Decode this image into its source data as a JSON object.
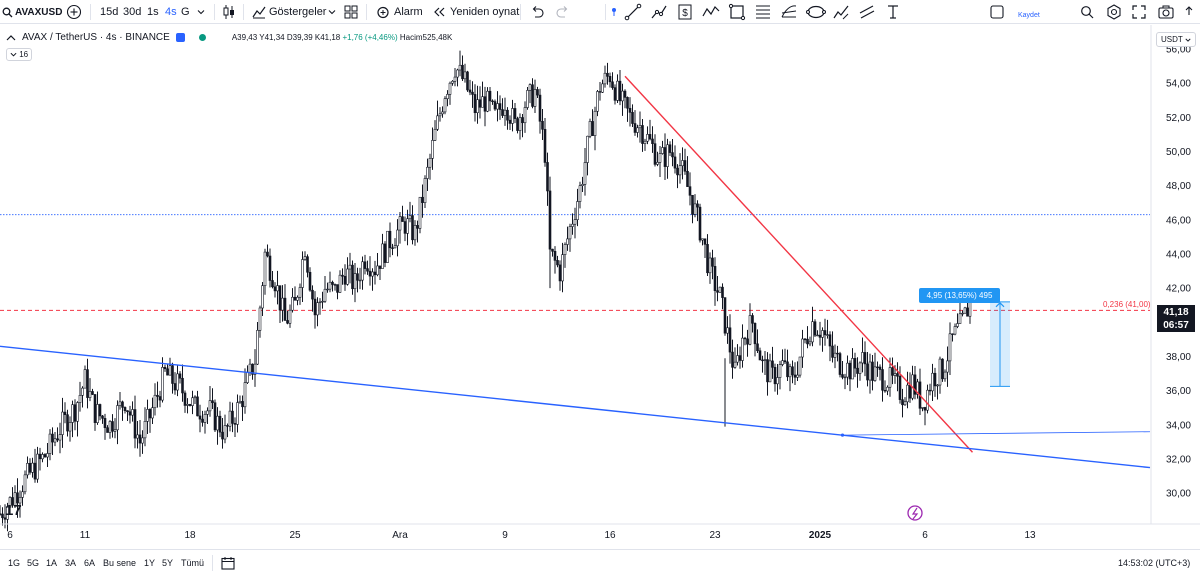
{
  "toolbar": {
    "symbol": "AVAXUSD",
    "intervals": [
      "15d",
      "30d",
      "1s",
      "4s",
      "G"
    ],
    "indicators_label": "Göstergeler",
    "alarm_label": "Alarm",
    "replay_label": "Yeniden oynat",
    "save_label": "Kaydet"
  },
  "legend": {
    "title": "AVAX / TetherUS · 4s · BINANCE",
    "ohlc": "A39,43 Y41,34 D39,39 K41,18",
    "change": "+1,76 (+4,46%)",
    "volume": "Hacim525,48K",
    "badge": "16"
  },
  "price_axis": {
    "currency": "USDT",
    "last_price": "41,18",
    "countdown": "06:57"
  },
  "annotations": {
    "fib_label": "0,236 (41,00)",
    "measure_label": "4,95 (13,65%) 495"
  },
  "bottom": {
    "ranges": [
      "1G",
      "5G",
      "1A",
      "3A",
      "6A",
      "Bu sene",
      "1Y",
      "5Y",
      "Tümü"
    ],
    "clock": "14:53:02 (UTC+3)"
  },
  "colors": {
    "accent": "#2962ff",
    "trend_red": "#f23645",
    "trend_blue": "#2962ff",
    "measure_blue": "#2196f3",
    "candles": "#131722"
  },
  "chart_data": {
    "type": "candlestick",
    "y_ticks": [
      "56,00",
      "54,00",
      "52,00",
      "50,00",
      "48,00",
      "46,00",
      "44,00",
      "42,00",
      "40,00",
      "38,00",
      "36,00",
      "34,00",
      "32,00",
      "30,00"
    ],
    "y_tick_values": [
      56,
      54,
      52,
      50,
      48,
      46,
      44,
      42,
      40,
      38,
      36,
      34,
      32,
      30
    ],
    "ylim": [
      28.2,
      57.4
    ],
    "x_ticks": [
      "6",
      "11",
      "18",
      "25",
      "Ara",
      "9",
      "16",
      "23",
      "2025",
      "6",
      "13"
    ],
    "x_tick_bars": [
      4,
      34,
      76,
      118,
      160,
      202,
      244,
      286,
      328,
      370,
      412
    ],
    "bar_count": 460,
    "close_path": [
      [
        0,
        28.8
      ],
      [
        4,
        29.5
      ],
      [
        10,
        30.8
      ],
      [
        18,
        32.2
      ],
      [
        24,
        33.8
      ],
      [
        30,
        35.0
      ],
      [
        34,
        36.6
      ],
      [
        38,
        34.8
      ],
      [
        44,
        34.0
      ],
      [
        50,
        35.5
      ],
      [
        56,
        33.0
      ],
      [
        60,
        34.5
      ],
      [
        66,
        37.0
      ],
      [
        72,
        36.2
      ],
      [
        78,
        35.0
      ],
      [
        84,
        34.8
      ],
      [
        90,
        33.5
      ],
      [
        96,
        35.2
      ],
      [
        102,
        37.8
      ],
      [
        106,
        44.0
      ],
      [
        110,
        42.5
      ],
      [
        114,
        40.0
      ],
      [
        118,
        41.0
      ],
      [
        122,
        44.5
      ],
      [
        126,
        40.5
      ],
      [
        130,
        42.0
      ],
      [
        134,
        41.8
      ],
      [
        138,
        43.0
      ],
      [
        142,
        42.2
      ],
      [
        146,
        43.8
      ],
      [
        150,
        43.2
      ],
      [
        156,
        44.8
      ],
      [
        162,
        45.8
      ],
      [
        166,
        45.2
      ],
      [
        170,
        48.0
      ],
      [
        174,
        51.0
      ],
      [
        178,
        53.5
      ],
      [
        182,
        55.0
      ],
      [
        186,
        54.0
      ],
      [
        190,
        52.5
      ],
      [
        194,
        53.0
      ],
      [
        198,
        52.0
      ],
      [
        202,
        53.0
      ],
      [
        206,
        51.5
      ],
      [
        210,
        52.8
      ],
      [
        214,
        53.5
      ],
      [
        218,
        50.0
      ],
      [
        220,
        44.0
      ],
      [
        224,
        43.0
      ],
      [
        228,
        45.5
      ],
      [
        232,
        47.8
      ],
      [
        236,
        51.0
      ],
      [
        240,
        53.8
      ],
      [
        244,
        54.5
      ],
      [
        248,
        53.0
      ],
      [
        252,
        52.0
      ],
      [
        256,
        51.5
      ],
      [
        260,
        50.5
      ],
      [
        264,
        49.5
      ],
      [
        268,
        50.0
      ],
      [
        272,
        49.2
      ],
      [
        276,
        47.5
      ],
      [
        280,
        45.5
      ],
      [
        284,
        43.0
      ],
      [
        288,
        41.5
      ],
      [
        292,
        38.5
      ],
      [
        294,
        37.0
      ],
      [
        297,
        39.0
      ],
      [
        301,
        40.0
      ],
      [
        305,
        37.5
      ],
      [
        309,
        36.8
      ],
      [
        313,
        37.5
      ],
      [
        317,
        36.5
      ],
      [
        321,
        38.5
      ],
      [
        325,
        40.0
      ],
      [
        329,
        39.5
      ],
      [
        333,
        38.0
      ],
      [
        337,
        37.5
      ],
      [
        341,
        37.2
      ],
      [
        345,
        37.8
      ],
      [
        349,
        37.0
      ],
      [
        353,
        36.8
      ],
      [
        357,
        36.5
      ],
      [
        361,
        35.8
      ],
      [
        365,
        36.5
      ],
      [
        369,
        35.2
      ],
      [
        373,
        36.8
      ],
      [
        377,
        37.2
      ],
      [
        381,
        39.0
      ],
      [
        385,
        40.0
      ],
      [
        388,
        41.2
      ]
    ],
    "trendlines": [
      {
        "name": "red-trendline",
        "color": "#f23645",
        "from": [
          250,
          54.4
        ],
        "to": [
          389,
          32.4
        ]
      },
      {
        "name": "blue-trendline",
        "color": "#2962ff",
        "from": [
          0,
          38.6
        ],
        "to": [
          460,
          31.5
        ]
      },
      {
        "name": "blue-ray",
        "color": "#2962ff",
        "from": [
          337,
          33.4
        ],
        "to": [
          460,
          33.6
        ]
      }
    ],
    "hlines": [
      {
        "name": "blue-dotted-line",
        "value": 46.3,
        "color": "#2962ff",
        "style": "dotted"
      },
      {
        "name": "red-dashed-line",
        "value": 40.7,
        "color": "#f23645",
        "style": "dashed"
      }
    ],
    "measure": {
      "from_bar": 396,
      "to_bar": 404,
      "low": 36.25,
      "high": 41.2
    }
  }
}
